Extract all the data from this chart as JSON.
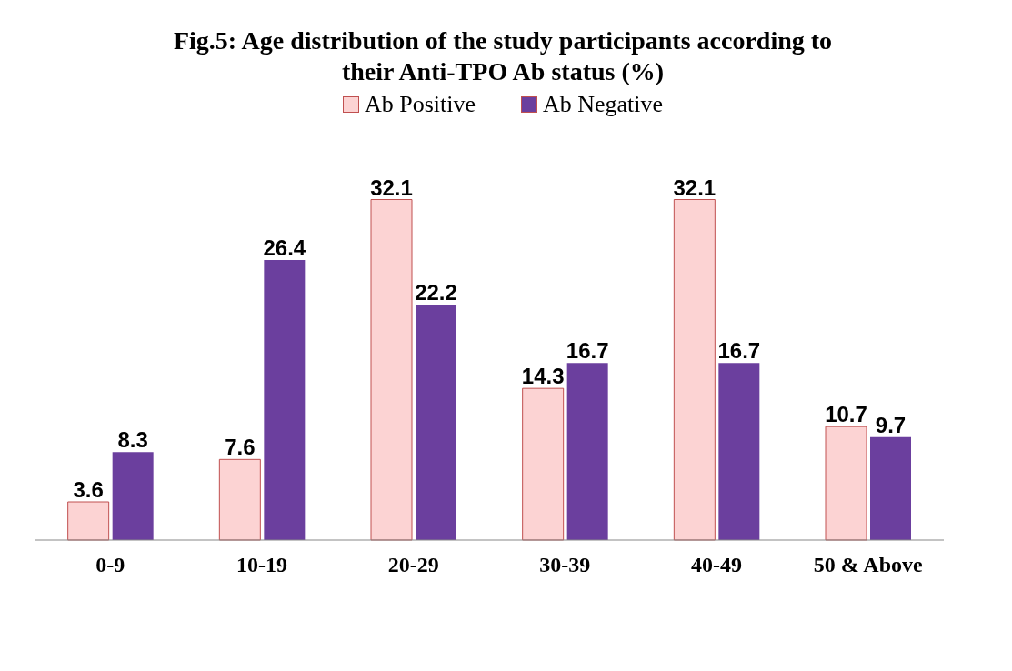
{
  "chart_data": {
    "type": "bar",
    "title": "Fig.5: Age distribution of the study participants according to their Anti-TPO Ab status (%)",
    "categories": [
      "0-9",
      "10-19",
      "20-29",
      "30-39",
      "40-49",
      "50 & Above"
    ],
    "series": [
      {
        "name": "Ab Positive",
        "color": "#fcd3d3",
        "values": [
          3.6,
          7.6,
          32.1,
          14.3,
          32.1,
          10.7
        ]
      },
      {
        "name": "Ab Negative",
        "color": "#6b3f9e",
        "values": [
          8.3,
          26.4,
          22.2,
          16.7,
          16.7,
          9.7
        ]
      }
    ],
    "data_labels": true,
    "legend": "top",
    "grid": false
  }
}
